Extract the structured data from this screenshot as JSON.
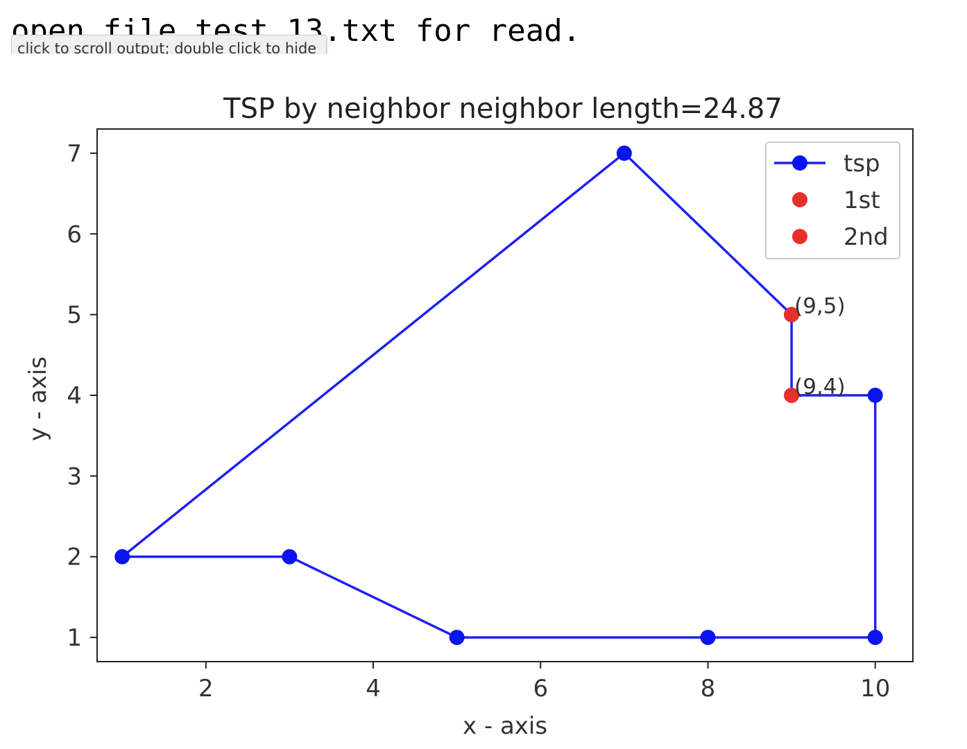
{
  "output": {
    "text": "open file test 13.txt for read.",
    "tooltip": "click to scroll output; double click to hide"
  },
  "colors": {
    "tsp": "#1f1ff5",
    "marker": "#0a14f0",
    "highlight": "#e8302a",
    "axis": "#222222",
    "text": "#333333"
  },
  "chart_data": {
    "type": "line",
    "title": "TSP by neighbor neighbor length=24.87",
    "xlabel": "x - axis",
    "ylabel": "y - axis",
    "xlim": [
      0.7,
      10.45
    ],
    "ylim": [
      0.7,
      7.3
    ],
    "xticks": [
      "2",
      "4",
      "6",
      "8",
      "10"
    ],
    "xtick_values": [
      2,
      4,
      6,
      8,
      10
    ],
    "yticks": [
      "1",
      "2",
      "3",
      "4",
      "5",
      "6",
      "7"
    ],
    "ytick_values": [
      1,
      2,
      3,
      4,
      5,
      6,
      7
    ],
    "grid": false,
    "legend_position": "top-right",
    "series": [
      {
        "name": "tsp",
        "style": "line-marker",
        "color": "#1f1ff5",
        "x": [
          9,
          9,
          10,
          10,
          8,
          5,
          3,
          1,
          7,
          9
        ],
        "y": [
          5,
          4,
          4,
          1,
          1,
          1,
          2,
          2,
          7,
          5
        ]
      },
      {
        "name": "1st",
        "style": "marker",
        "color": "#e8302a",
        "x": [
          9
        ],
        "y": [
          5
        ]
      },
      {
        "name": "2nd",
        "style": "marker",
        "color": "#e8302a",
        "x": [
          9
        ],
        "y": [
          4
        ]
      }
    ],
    "annotations": [
      {
        "text": "(9,5)",
        "x": 9,
        "y": 5
      },
      {
        "text": "(9,4)",
        "x": 9,
        "y": 4
      }
    ]
  }
}
